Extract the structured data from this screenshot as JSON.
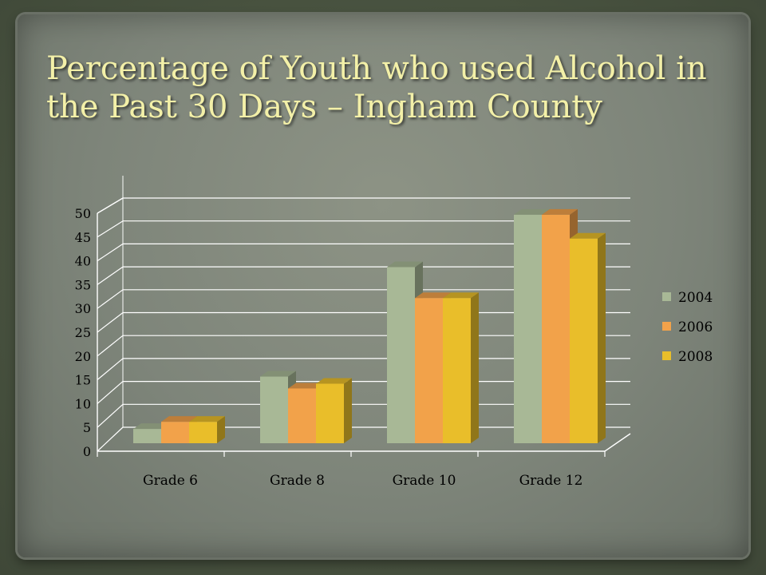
{
  "slide": {
    "title": "Percentage of Youth who used Alcohol in the Past 30 Days – Ingham County"
  },
  "chart_data": {
    "type": "bar",
    "title": "",
    "xlabel": "",
    "ylabel": "",
    "categories": [
      "Grade 6",
      "Grade 8",
      "Grade 10",
      "Grade 12"
    ],
    "series": [
      {
        "name": "2004",
        "values": [
          3,
          14,
          37,
          48
        ],
        "color": "#a8b896"
      },
      {
        "name": "2006",
        "values": [
          4.5,
          11.5,
          30.5,
          48
        ],
        "color": "#f2a24a"
      },
      {
        "name": "2008",
        "values": [
          4.5,
          12.5,
          30.5,
          43
        ],
        "color": "#e9be2a"
      }
    ],
    "ylim": [
      0,
      50
    ],
    "yticks": [
      0,
      5,
      10,
      15,
      20,
      25,
      30,
      35,
      40,
      45,
      50
    ],
    "grid": true,
    "legend": "right",
    "style": "3d-clustered-column"
  }
}
